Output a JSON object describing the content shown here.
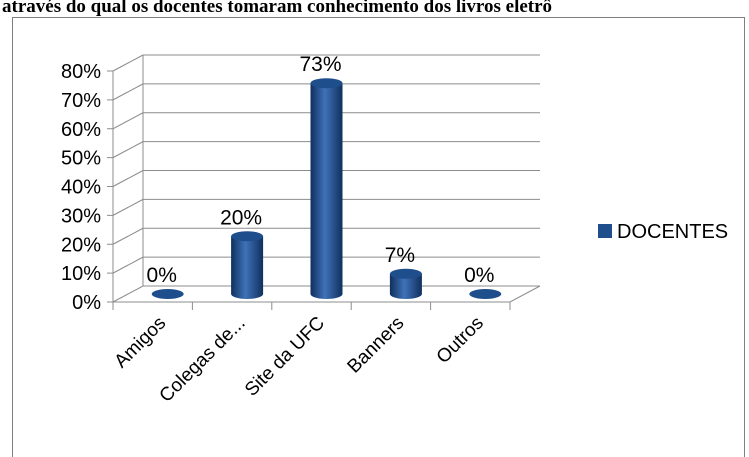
{
  "heading": "através do qual os docentes tomaram conhecimento dos livros eletrô",
  "chart_data": {
    "type": "bar",
    "style": "3d-cylinder",
    "categories": [
      "Amigos",
      "Colegas de...",
      "Site da UFC",
      "Banners",
      "Outros"
    ],
    "series": [
      {
        "name": "DOCENTES",
        "values": [
          0,
          20,
          73,
          7,
          0
        ],
        "labels": [
          "0%",
          "20%",
          "73%",
          "7%",
          "0%"
        ]
      }
    ],
    "ylim": [
      0,
      80
    ],
    "ytick_labels": [
      "0%",
      "10%",
      "20%",
      "30%",
      "40%",
      "50%",
      "60%",
      "70%",
      "80%"
    ],
    "grid": true,
    "legend_position": "right",
    "colors": {
      "bar": "#1f4e8c",
      "bar_dark": "#10305e",
      "bar_light": "#3f72b8",
      "grid": "#8c8c8c"
    }
  }
}
